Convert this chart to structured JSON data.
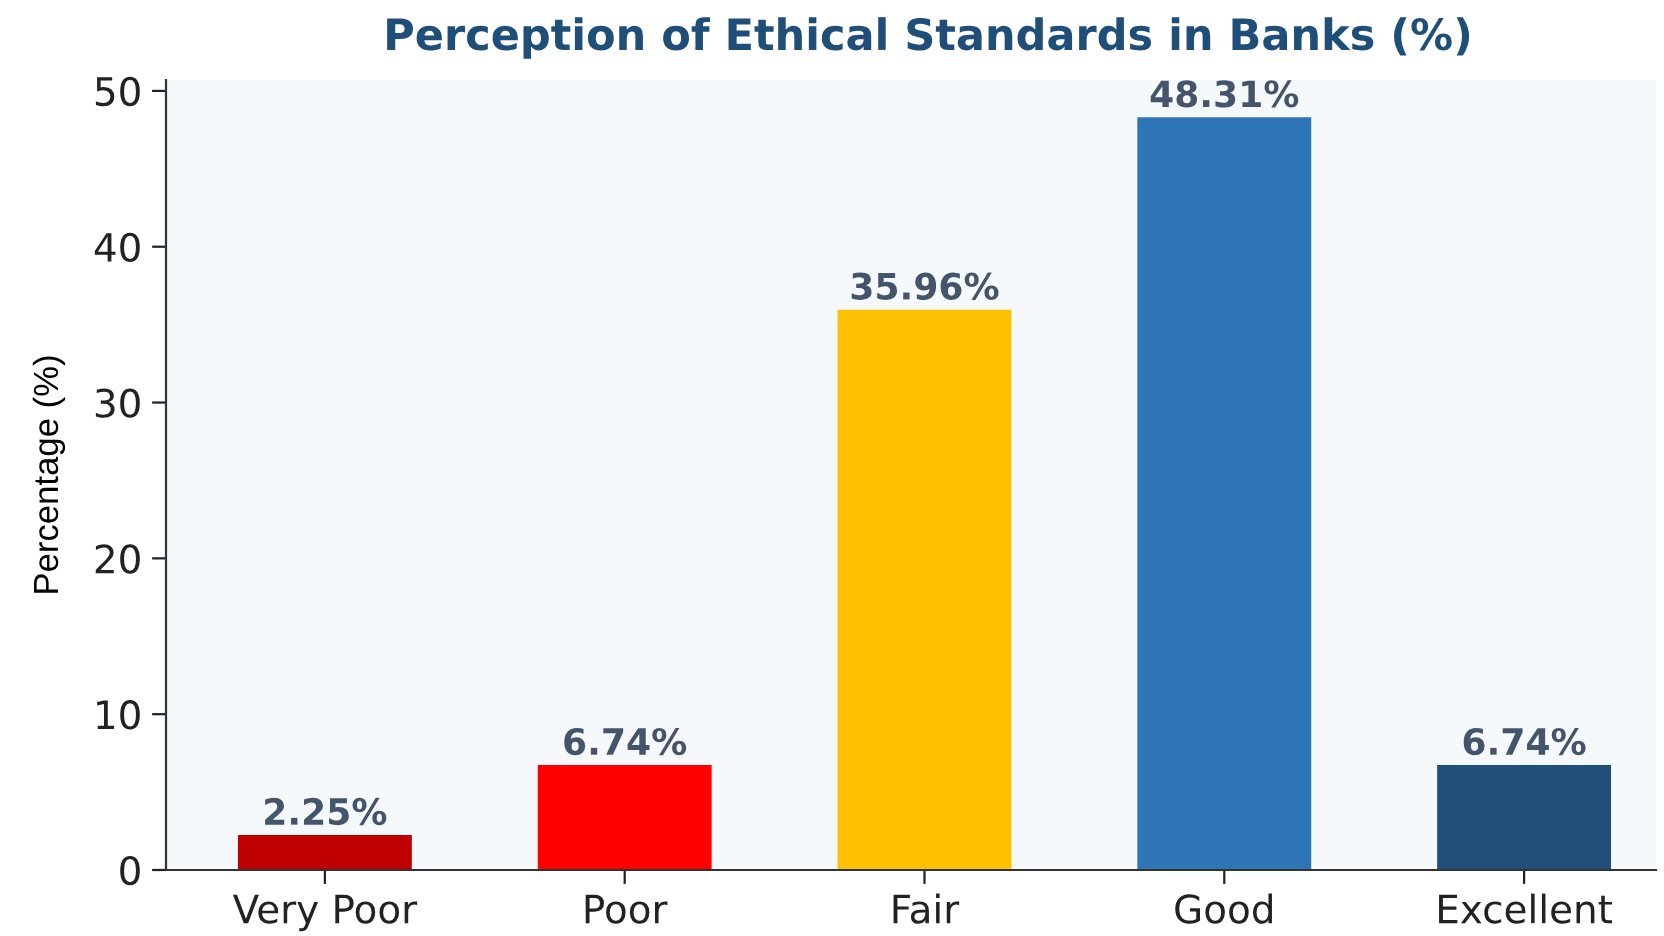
{
  "chart_data": {
    "type": "bar",
    "title": "Perception of Ethical Standards in Banks (%)",
    "ylabel": "Percentage (%)",
    "categories": [
      "Very Poor",
      "Poor",
      "Fair",
      "Good",
      "Excellent"
    ],
    "values": [
      2.25,
      6.74,
      35.96,
      48.31,
      6.74
    ],
    "colors": [
      "#c00000",
      "#ff0000",
      "#ffc000",
      "#2e75b6",
      "#1f4e79"
    ],
    "value_labels": [
      "2.25%",
      "6.74%",
      "35.96%",
      "48.31%",
      "6.74%"
    ],
    "ylim": [
      0,
      50.7
    ],
    "yticks": [
      0,
      10,
      20,
      30,
      40,
      50
    ],
    "grid": false,
    "legend": false
  }
}
